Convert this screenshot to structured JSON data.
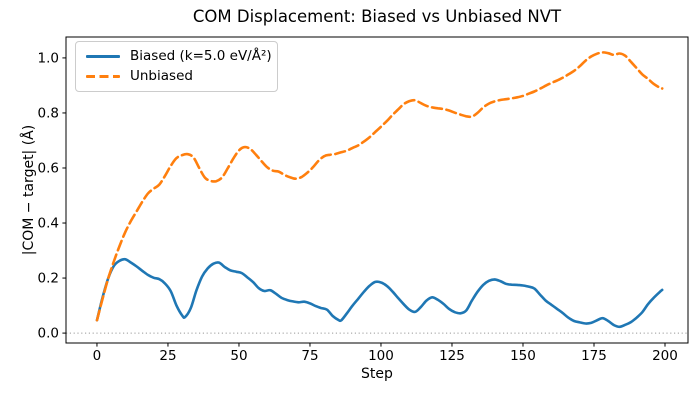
{
  "figure": {
    "background": "#ffffff"
  },
  "chart_data": {
    "type": "line",
    "title": "COM Displacement: Biased vs Unbiased NVT",
    "xlabel": "Step",
    "ylabel": "|COM − target| (Å)",
    "x_tick_values": [
      0,
      25,
      50,
      75,
      100,
      125,
      150,
      175,
      200
    ],
    "x_tick_labels": [
      "0",
      "25",
      "50",
      "75",
      "100",
      "125",
      "150",
      "175",
      "200"
    ],
    "y_tick_values": [
      0.0,
      0.2,
      0.4,
      0.6,
      0.8,
      1.0
    ],
    "y_tick_labels": [
      "0.0",
      "0.2",
      "0.4",
      "0.6",
      "0.8",
      "1.0"
    ],
    "xlim": [
      -10.9,
      208.1
    ],
    "ylim": [
      -0.036,
      1.076
    ],
    "grid": false,
    "legend_position": "upper-left",
    "reference_line": {
      "y": 0.0,
      "style": "dotted",
      "color": "#999999"
    },
    "series": [
      {
        "id": "biased",
        "name": "Biased (k=5.0 eV/Å²)",
        "color": "#1f77b4",
        "style": "solid",
        "points": [
          [
            0,
            0.047
          ],
          [
            2,
            0.13
          ],
          [
            4,
            0.2
          ],
          [
            6,
            0.245
          ],
          [
            8,
            0.263
          ],
          [
            10,
            0.268
          ],
          [
            12,
            0.256
          ],
          [
            14,
            0.242
          ],
          [
            16,
            0.226
          ],
          [
            18,
            0.211
          ],
          [
            20,
            0.201
          ],
          [
            22,
            0.196
          ],
          [
            24,
            0.18
          ],
          [
            26,
            0.152
          ],
          [
            28,
            0.1
          ],
          [
            30,
            0.064
          ],
          [
            31,
            0.058
          ],
          [
            33,
            0.09
          ],
          [
            35,
            0.155
          ],
          [
            37,
            0.205
          ],
          [
            39,
            0.235
          ],
          [
            41,
            0.252
          ],
          [
            43,
            0.256
          ],
          [
            45,
            0.24
          ],
          [
            47,
            0.228
          ],
          [
            49,
            0.223
          ],
          [
            51,
            0.218
          ],
          [
            53,
            0.202
          ],
          [
            55,
            0.185
          ],
          [
            57,
            0.163
          ],
          [
            59,
            0.153
          ],
          [
            61,
            0.156
          ],
          [
            63,
            0.143
          ],
          [
            65,
            0.128
          ],
          [
            67,
            0.12
          ],
          [
            69,
            0.115
          ],
          [
            71,
            0.112
          ],
          [
            73,
            0.114
          ],
          [
            75,
            0.108
          ],
          [
            77,
            0.098
          ],
          [
            79,
            0.091
          ],
          [
            81,
            0.085
          ],
          [
            83,
            0.062
          ],
          [
            85,
            0.048
          ],
          [
            86,
            0.046
          ],
          [
            88,
            0.072
          ],
          [
            90,
            0.1
          ],
          [
            92,
            0.125
          ],
          [
            94,
            0.15
          ],
          [
            96,
            0.172
          ],
          [
            98,
            0.186
          ],
          [
            100,
            0.184
          ],
          [
            102,
            0.172
          ],
          [
            104,
            0.152
          ],
          [
            106,
            0.128
          ],
          [
            108,
            0.105
          ],
          [
            110,
            0.085
          ],
          [
            112,
            0.077
          ],
          [
            114,
            0.094
          ],
          [
            116,
            0.118
          ],
          [
            118,
            0.13
          ],
          [
            120,
            0.121
          ],
          [
            122,
            0.106
          ],
          [
            124,
            0.088
          ],
          [
            126,
            0.076
          ],
          [
            128,
            0.072
          ],
          [
            130,
            0.082
          ],
          [
            132,
            0.118
          ],
          [
            134,
            0.15
          ],
          [
            136,
            0.175
          ],
          [
            138,
            0.19
          ],
          [
            140,
            0.195
          ],
          [
            142,
            0.189
          ],
          [
            144,
            0.179
          ],
          [
            146,
            0.176
          ],
          [
            148,
            0.175
          ],
          [
            150,
            0.173
          ],
          [
            152,
            0.169
          ],
          [
            154,
            0.162
          ],
          [
            156,
            0.14
          ],
          [
            158,
            0.118
          ],
          [
            160,
            0.103
          ],
          [
            162,
            0.088
          ],
          [
            164,
            0.073
          ],
          [
            166,
            0.056
          ],
          [
            168,
            0.044
          ],
          [
            170,
            0.039
          ],
          [
            172,
            0.035
          ],
          [
            174,
            0.037
          ],
          [
            176,
            0.046
          ],
          [
            178,
            0.054
          ],
          [
            180,
            0.044
          ],
          [
            182,
            0.029
          ],
          [
            184,
            0.023
          ],
          [
            186,
            0.03
          ],
          [
            188,
            0.04
          ],
          [
            190,
            0.056
          ],
          [
            192,
            0.076
          ],
          [
            194,
            0.105
          ],
          [
            196,
            0.128
          ],
          [
            198,
            0.148
          ],
          [
            199,
            0.157
          ]
        ]
      },
      {
        "id": "unbiased",
        "name": "Unbiased",
        "color": "#ff7f0e",
        "style": "dashed",
        "points": [
          [
            0,
            0.047
          ],
          [
            2,
            0.125
          ],
          [
            4,
            0.2
          ],
          [
            6,
            0.262
          ],
          [
            8,
            0.318
          ],
          [
            10,
            0.368
          ],
          [
            12,
            0.408
          ],
          [
            14,
            0.443
          ],
          [
            16,
            0.478
          ],
          [
            18,
            0.508
          ],
          [
            20,
            0.525
          ],
          [
            22,
            0.54
          ],
          [
            24,
            0.572
          ],
          [
            26,
            0.608
          ],
          [
            28,
            0.636
          ],
          [
            30,
            0.647
          ],
          [
            32,
            0.65
          ],
          [
            34,
            0.638
          ],
          [
            36,
            0.6
          ],
          [
            38,
            0.565
          ],
          [
            40,
            0.553
          ],
          [
            42,
            0.552
          ],
          [
            44,
            0.565
          ],
          [
            46,
            0.598
          ],
          [
            48,
            0.634
          ],
          [
            50,
            0.664
          ],
          [
            52,
            0.676
          ],
          [
            54,
            0.669
          ],
          [
            56,
            0.648
          ],
          [
            58,
            0.624
          ],
          [
            60,
            0.602
          ],
          [
            62,
            0.59
          ],
          [
            64,
            0.587
          ],
          [
            66,
            0.575
          ],
          [
            68,
            0.566
          ],
          [
            70,
            0.561
          ],
          [
            72,
            0.567
          ],
          [
            74,
            0.582
          ],
          [
            76,
            0.602
          ],
          [
            78,
            0.626
          ],
          [
            80,
            0.643
          ],
          [
            82,
            0.648
          ],
          [
            84,
            0.651
          ],
          [
            86,
            0.657
          ],
          [
            88,
            0.663
          ],
          [
            90,
            0.673
          ],
          [
            92,
            0.682
          ],
          [
            94,
            0.696
          ],
          [
            96,
            0.712
          ],
          [
            98,
            0.731
          ],
          [
            100,
            0.75
          ],
          [
            102,
            0.77
          ],
          [
            104,
            0.792
          ],
          [
            106,
            0.812
          ],
          [
            108,
            0.832
          ],
          [
            110,
            0.843
          ],
          [
            112,
            0.846
          ],
          [
            114,
            0.836
          ],
          [
            116,
            0.826
          ],
          [
            118,
            0.82
          ],
          [
            120,
            0.817
          ],
          [
            122,
            0.814
          ],
          [
            124,
            0.809
          ],
          [
            126,
            0.801
          ],
          [
            128,
            0.794
          ],
          [
            130,
            0.788
          ],
          [
            132,
            0.787
          ],
          [
            134,
            0.8
          ],
          [
            136,
            0.82
          ],
          [
            138,
            0.834
          ],
          [
            140,
            0.842
          ],
          [
            142,
            0.847
          ],
          [
            144,
            0.85
          ],
          [
            146,
            0.853
          ],
          [
            148,
            0.857
          ],
          [
            150,
            0.862
          ],
          [
            152,
            0.87
          ],
          [
            154,
            0.878
          ],
          [
            156,
            0.888
          ],
          [
            158,
            0.899
          ],
          [
            160,
            0.909
          ],
          [
            162,
            0.918
          ],
          [
            164,
            0.928
          ],
          [
            166,
            0.94
          ],
          [
            168,
            0.953
          ],
          [
            170,
            0.97
          ],
          [
            172,
            0.99
          ],
          [
            174,
            1.005
          ],
          [
            176,
            1.015
          ],
          [
            178,
            1.02
          ],
          [
            180,
            1.017
          ],
          [
            182,
            1.011
          ],
          [
            184,
            1.016
          ],
          [
            186,
            1.008
          ],
          [
            188,
            0.986
          ],
          [
            190,
            0.963
          ],
          [
            192,
            0.94
          ],
          [
            194,
            0.924
          ],
          [
            196,
            0.906
          ],
          [
            198,
            0.893
          ],
          [
            199,
            0.889
          ]
        ]
      }
    ]
  }
}
